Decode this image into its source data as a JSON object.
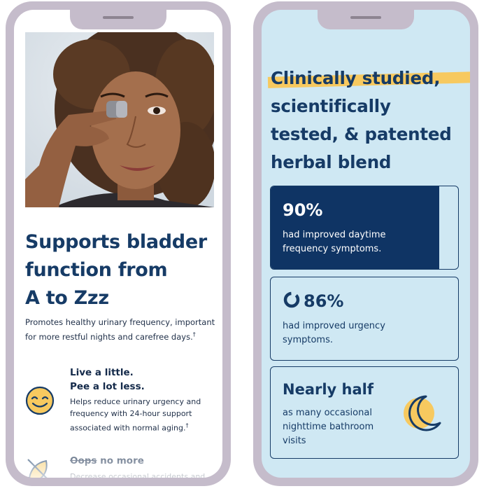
{
  "left_phone": {
    "title_lines": [
      "Supports bladder",
      "function from",
      "A to Zzz"
    ],
    "subtitle": "Promotes healthy urinary frequency, important for more restful nights and carefree days.",
    "subtitle_mark": "†",
    "features": [
      {
        "icon": "smile-icon",
        "heading_lines": [
          "Live a little.",
          "Pee a lot less."
        ],
        "body": "Helps reduce urinary urgency and frequency with 24-hour support associated with normal aging.",
        "mark": "†"
      },
      {
        "icon": "no-leaf-icon",
        "heading_struck": "Oops",
        "heading_rest": " no more",
        "body": "Decrease occasional accidents and"
      }
    ]
  },
  "right_phone": {
    "title_highlight": "Clinically studied,",
    "title_lines": [
      "scientifically",
      "tested, & patented",
      "herbal blend"
    ],
    "stats": [
      {
        "value": "90%",
        "fraction": 0.9,
        "desc_lines": [
          "had improved daytime",
          "frequency symptoms."
        ]
      },
      {
        "value": "86%",
        "fraction": 0.86,
        "icon": "partial-ring-icon",
        "desc_lines": [
          "had improved urgency",
          "symptoms."
        ]
      },
      {
        "value": "Nearly half",
        "icon": "moon-icon",
        "desc_lines": [
          "as many occasional",
          "nighttime bathroom",
          "visits"
        ]
      }
    ]
  },
  "colors": {
    "navy": "#163b66",
    "highlight": "#f7c95f",
    "frame": "#c5bccb",
    "right_bg": "#cfe8f3"
  }
}
